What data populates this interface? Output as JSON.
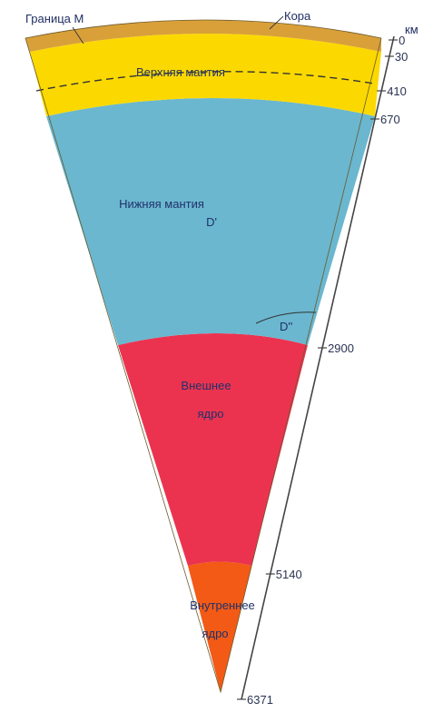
{
  "labels": {
    "moho": "Граница М",
    "crust": "Кора",
    "unit": "км",
    "upper_mantle": "Верхняя мантия",
    "lower_mantle_line1": "Нижняя мантия",
    "lower_mantle_line2": "D'",
    "d_double_prime": "D''",
    "outer_core_line1": "Внешнее",
    "outer_core_line2": "ядро",
    "inner_core_line1": "Внутреннее",
    "inner_core_line2": "ядро"
  },
  "depths": [
    {
      "value": 0,
      "label": "0"
    },
    {
      "value": 30,
      "label": "30"
    },
    {
      "value": 410,
      "label": "410"
    },
    {
      "value": 670,
      "label": "670"
    },
    {
      "value": 2900,
      "label": "2900"
    },
    {
      "value": 5140,
      "label": "5140"
    },
    {
      "value": 6371,
      "label": "6371"
    }
  ],
  "colors": {
    "crust": "#d9a03a",
    "upper_mantle": "#fbd900",
    "lower_mantle": "#6ab7cf",
    "outer_core": "#eb3350",
    "inner_core": "#f25a16"
  }
}
